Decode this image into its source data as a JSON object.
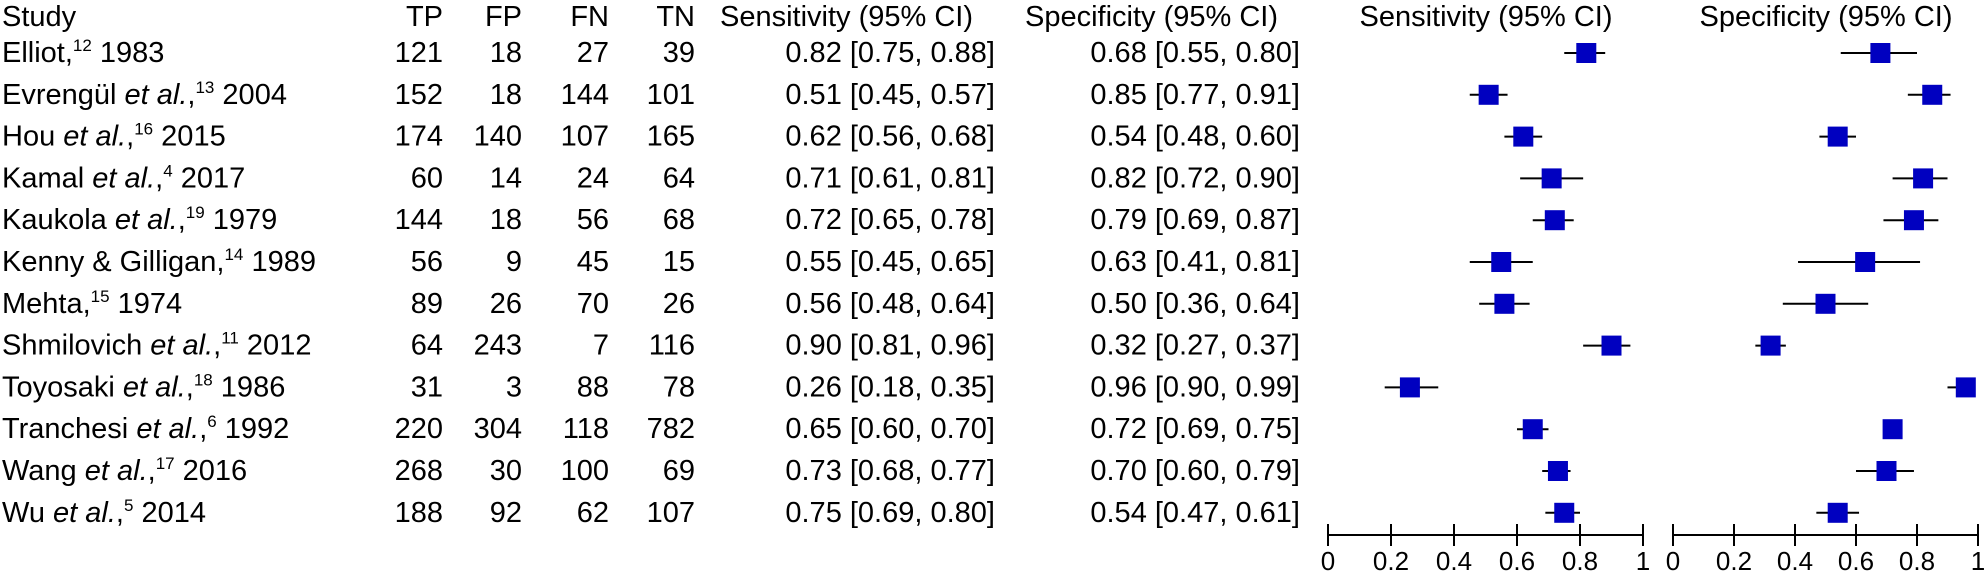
{
  "headers": {
    "study": "Study",
    "tp": "TP",
    "fp": "FP",
    "fn": "FN",
    "tn": "TN",
    "sensitivity": "Sensitivity (95% CI)",
    "specificity": "Specificity (95% CI)",
    "sensitivity_plot": "Sensitivity (95% CI)",
    "specificity_plot": "Specificity (95% CI)"
  },
  "studies": [
    {
      "name": "Elliot,",
      "italic": "",
      "name_after": "",
      "ref": "12",
      "year": "1983",
      "tp": "121",
      "fp": "18",
      "fn": "27",
      "tn": "39",
      "sens_text": "0.82 [0.75, 0.88]",
      "spec_text": "0.68 [0.55, 0.80]"
    },
    {
      "name": "Evrengül ",
      "italic": "et al.",
      "name_after": ",",
      "ref": "13",
      "year": "2004",
      "tp": "152",
      "fp": "18",
      "fn": "144",
      "tn": "101",
      "sens_text": "0.51 [0.45, 0.57]",
      "spec_text": "0.85 [0.77, 0.91]"
    },
    {
      "name": "Hou ",
      "italic": "et al.",
      "name_after": ",",
      "ref": "16",
      "year": "2015",
      "tp": "174",
      "fp": "140",
      "fn": "107",
      "tn": "165",
      "sens_text": "0.62 [0.56, 0.68]",
      "spec_text": "0.54 [0.48, 0.60]"
    },
    {
      "name": "Kamal ",
      "italic": "et al.",
      "name_after": ",",
      "ref": "4",
      "year": "2017",
      "tp": "60",
      "fp": "14",
      "fn": "24",
      "tn": "64",
      "sens_text": "0.71 [0.61, 0.81]",
      "spec_text": "0.82 [0.72, 0.90]"
    },
    {
      "name": "Kaukola ",
      "italic": "et al.",
      "name_after": ",",
      "ref": "19",
      "year": "1979",
      "tp": "144",
      "fp": "18",
      "fn": "56",
      "tn": "68",
      "sens_text": "0.72 [0.65, 0.78]",
      "spec_text": "0.79 [0.69, 0.87]"
    },
    {
      "name": "Kenny & Gilligan,",
      "italic": "",
      "name_after": "",
      "ref": "14",
      "year": "1989",
      "tp": "56",
      "fp": "9",
      "fn": "45",
      "tn": "15",
      "sens_text": "0.55 [0.45, 0.65]",
      "spec_text": "0.63 [0.41, 0.81]"
    },
    {
      "name": "Mehta,",
      "italic": "",
      "name_after": "",
      "ref": "15",
      "year": "1974",
      "tp": "89",
      "fp": "26",
      "fn": "70",
      "tn": "26",
      "sens_text": "0.56 [0.48, 0.64]",
      "spec_text": "0.50 [0.36, 0.64]"
    },
    {
      "name": "Shmilovich ",
      "italic": "et al.",
      "name_after": ",",
      "ref": "11",
      "year": "2012",
      "tp": "64",
      "fp": "243",
      "fn": "7",
      "tn": "116",
      "sens_text": "0.90 [0.81, 0.96]",
      "spec_text": "0.32 [0.27, 0.37]"
    },
    {
      "name": "Toyosaki ",
      "italic": "et al.",
      "name_after": ",",
      "ref": "18",
      "year": "1986",
      "tp": "31",
      "fp": "3",
      "fn": "88",
      "tn": "78",
      "sens_text": "0.26 [0.18, 0.35]",
      "spec_text": "0.96 [0.90, 0.99]"
    },
    {
      "name": "Tranchesi ",
      "italic": "et al.",
      "name_after": ",",
      "ref": "6",
      "year": "1992",
      "tp": "220",
      "fp": "304",
      "fn": "118",
      "tn": "782",
      "sens_text": "0.65 [0.60, 0.70]",
      "spec_text": "0.72 [0.69, 0.75]"
    },
    {
      "name": "Wang ",
      "italic": "et al.",
      "name_after": ",",
      "ref": "17",
      "year": "2016",
      "tp": "268",
      "fp": "30",
      "fn": "100",
      "tn": "69",
      "sens_text": "0.73 [0.68, 0.77]",
      "spec_text": "0.70 [0.60, 0.79]"
    },
    {
      "name": "Wu ",
      "italic": "et al.",
      "name_after": ",",
      "ref": "5",
      "year": "2014",
      "tp": "188",
      "fp": "92",
      "fn": "62",
      "tn": "107",
      "sens_text": "0.75 [0.69, 0.80]",
      "spec_text": "0.54 [0.47, 0.61]"
    }
  ],
  "chart_data": {
    "type": "forest",
    "marker_color": "#0000c0",
    "line_color": "#000000",
    "xlim": [
      0,
      1
    ],
    "tick_labels": [
      "0",
      "0.2",
      "0.4",
      "0.6",
      "0.8",
      "1"
    ],
    "panels": [
      {
        "title": "Sensitivity (95% CI)",
        "values": [
          {
            "est": 0.82,
            "lo": 0.75,
            "hi": 0.88
          },
          {
            "est": 0.51,
            "lo": 0.45,
            "hi": 0.57
          },
          {
            "est": 0.62,
            "lo": 0.56,
            "hi": 0.68
          },
          {
            "est": 0.71,
            "lo": 0.61,
            "hi": 0.81
          },
          {
            "est": 0.72,
            "lo": 0.65,
            "hi": 0.78
          },
          {
            "est": 0.55,
            "lo": 0.45,
            "hi": 0.65
          },
          {
            "est": 0.56,
            "lo": 0.48,
            "hi": 0.64
          },
          {
            "est": 0.9,
            "lo": 0.81,
            "hi": 0.96
          },
          {
            "est": 0.26,
            "lo": 0.18,
            "hi": 0.35
          },
          {
            "est": 0.65,
            "lo": 0.6,
            "hi": 0.7
          },
          {
            "est": 0.73,
            "lo": 0.68,
            "hi": 0.77
          },
          {
            "est": 0.75,
            "lo": 0.69,
            "hi": 0.8
          }
        ]
      },
      {
        "title": "Specificity (95% CI)",
        "values": [
          {
            "est": 0.68,
            "lo": 0.55,
            "hi": 0.8
          },
          {
            "est": 0.85,
            "lo": 0.77,
            "hi": 0.91
          },
          {
            "est": 0.54,
            "lo": 0.48,
            "hi": 0.6
          },
          {
            "est": 0.82,
            "lo": 0.72,
            "hi": 0.9
          },
          {
            "est": 0.79,
            "lo": 0.69,
            "hi": 0.87
          },
          {
            "est": 0.63,
            "lo": 0.41,
            "hi": 0.81
          },
          {
            "est": 0.5,
            "lo": 0.36,
            "hi": 0.64
          },
          {
            "est": 0.32,
            "lo": 0.27,
            "hi": 0.37
          },
          {
            "est": 0.96,
            "lo": 0.9,
            "hi": 0.99
          },
          {
            "est": 0.72,
            "lo": 0.69,
            "hi": 0.75
          },
          {
            "est": 0.7,
            "lo": 0.6,
            "hi": 0.79
          },
          {
            "est": 0.54,
            "lo": 0.47,
            "hi": 0.61
          }
        ]
      }
    ]
  }
}
